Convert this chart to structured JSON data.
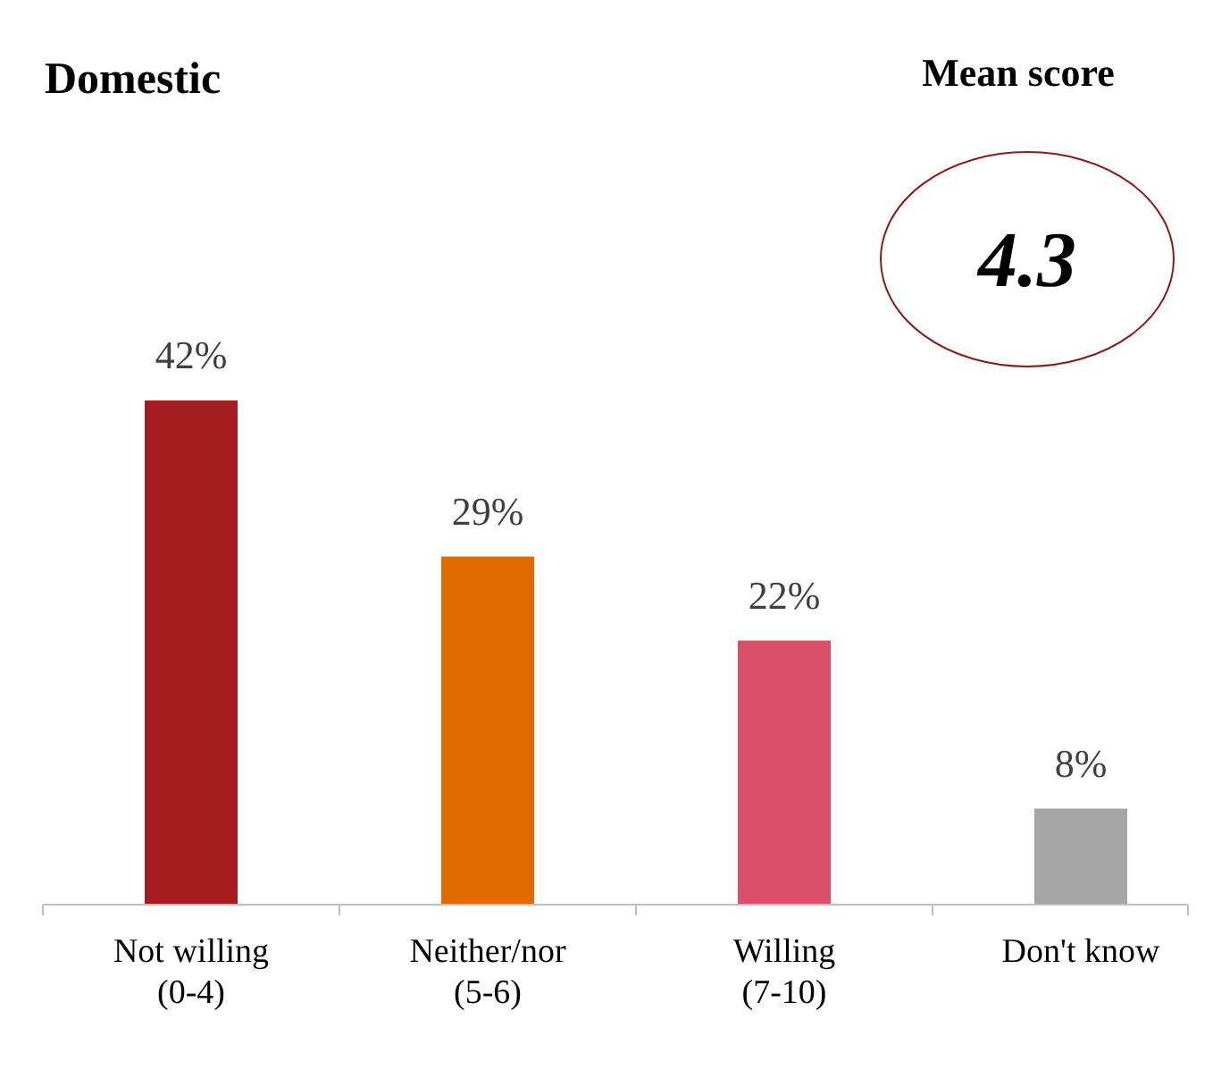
{
  "chart_data": {
    "type": "bar",
    "title": "Domestic",
    "categories": [
      "Not willing\n(0-4)",
      "Neither/nor\n(5-6)",
      "Willing\n(7-10)",
      "Don't know"
    ],
    "values": [
      42,
      29,
      22,
      8
    ],
    "colors": [
      "#a31c20",
      "#e06c00",
      "#db4f6a",
      "#a6a6a6"
    ],
    "value_labels": [
      "42%",
      "29%",
      "22%",
      "8%"
    ],
    "annotations": [
      "Mean score",
      "4.3"
    ]
  }
}
